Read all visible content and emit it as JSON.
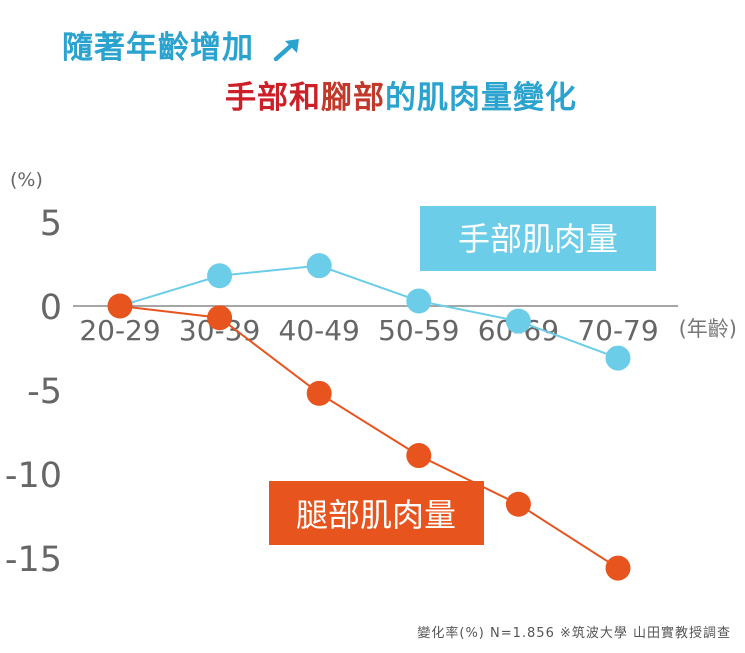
{
  "title": {
    "line1": "隨著年齡增加",
    "line2_part1": "手部和",
    "line2_part2": "腳部",
    "line2_part3": "的肌肉量變化"
  },
  "chart_data": {
    "type": "line",
    "categories": [
      "20-29",
      "30-39",
      "40-49",
      "50-59",
      "60-69",
      "70-79"
    ],
    "ylim": [
      -15,
      5
    ],
    "yticks": [
      5,
      0,
      -5,
      -10,
      -15
    ],
    "ylabel": "(%)",
    "xlabel": "(年齡)",
    "series": [
      {
        "name": "手部肌肉量",
        "values": [
          0,
          1.8,
          2.4,
          0.3,
          -0.9,
          -3.1
        ],
        "color": "#6bcde8",
        "label_bg": "#6bcde8"
      },
      {
        "name": "腿部肌肉量",
        "values": [
          0,
          -0.7,
          -5.2,
          -8.9,
          -11.8,
          -15.6
        ],
        "color": "#e8541e",
        "label_bg": "#e8541e"
      }
    ]
  },
  "footer": "變化率(%)  N=1.856 ※筑波大學 山田實教授調查",
  "colors": {
    "title_blue": "#2aa3cf",
    "title_red": "#cc1f28",
    "axis_text": "#666666"
  }
}
